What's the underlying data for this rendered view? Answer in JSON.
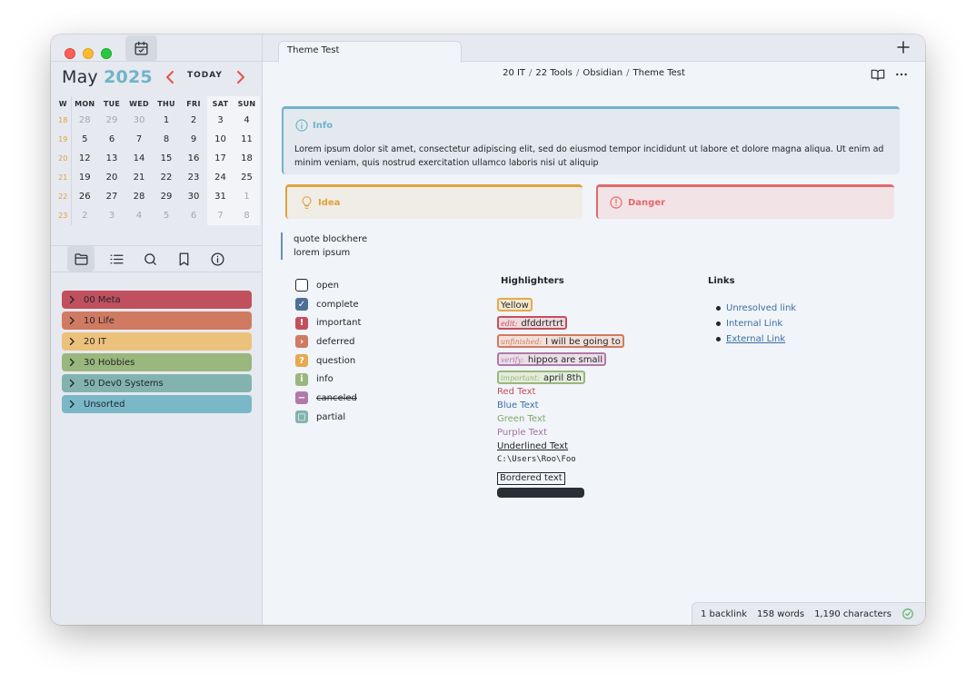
{
  "sidebar": {
    "calendar": {
      "month": "May",
      "year": "2025",
      "today_label": "TODAY",
      "weekday_headers": [
        "W",
        "MON",
        "TUE",
        "WED",
        "THU",
        "FRI",
        "SAT",
        "SUN"
      ],
      "weeks": [
        {
          "week": "18",
          "days": [
            "28",
            "29",
            "30",
            "1",
            "2",
            "3",
            "4"
          ]
        },
        {
          "week": "19",
          "days": [
            "5",
            "6",
            "7",
            "8",
            "9",
            "10",
            "11"
          ]
        },
        {
          "week": "20",
          "days": [
            "12",
            "13",
            "14",
            "15",
            "16",
            "17",
            "18"
          ]
        },
        {
          "week": "21",
          "days": [
            "19",
            "20",
            "21",
            "22",
            "23",
            "24",
            "25"
          ]
        },
        {
          "week": "22",
          "days": [
            "26",
            "27",
            "28",
            "29",
            "30",
            "31",
            "1"
          ]
        },
        {
          "week": "23",
          "days": [
            "2",
            "3",
            "4",
            "5",
            "6",
            "7",
            "8"
          ]
        }
      ],
      "accent_color": "#6fb4c9",
      "nav_color": "#e8524a"
    },
    "nav_tabs": [
      {
        "icon": "folder-icon"
      },
      {
        "icon": "list-icon"
      },
      {
        "icon": "search-icon"
      },
      {
        "icon": "bookmark-icon"
      },
      {
        "icon": "info-icon"
      }
    ],
    "folders": [
      {
        "label": "00 Meta",
        "color": "#c0505e"
      },
      {
        "label": "10 Life",
        "color": "#d07a62"
      },
      {
        "label": "20 IT",
        "color": "#ecc17c"
      },
      {
        "label": "30 Hobbies",
        "color": "#9ab77d"
      },
      {
        "label": "50 Dev0 Systems",
        "color": "#83b3ae"
      },
      {
        "label": "Unsorted",
        "color": "#7ab8c8"
      }
    ]
  },
  "tabbar": {
    "active_tab": "Theme Test",
    "new_tab_icon": "plus-icon"
  },
  "breadcrumb": {
    "parts": [
      "20 IT",
      "22 Tools",
      "Obsidian",
      "Theme Test"
    ],
    "separator": "/"
  },
  "note": {
    "callouts": {
      "info": {
        "title": "Info",
        "body": "Lorem ipsum dolor sit amet, consectetur adipiscing elit, sed do eiusmod tempor incididunt ut labore et dolore magna aliqua. Ut enim ad minim veniam, quis nostrud exercitation ullamco laboris nisi ut aliquip",
        "color": "#6fb4c9"
      },
      "idea": {
        "title": "Idea",
        "color": "#e0a13c"
      },
      "danger": {
        "title": "Danger",
        "color": "#e06a6a"
      }
    },
    "quote": {
      "line1": "quote blockhere",
      "line2": "lorem ipsum"
    },
    "tasks": [
      {
        "label": "open",
        "state": "open",
        "color": "#22262c",
        "glyph": ""
      },
      {
        "label": "complete",
        "state": "complete",
        "color": "#4d6f96",
        "glyph": "✓"
      },
      {
        "label": "important",
        "state": "important",
        "color": "#c0505e",
        "glyph": "!"
      },
      {
        "label": "deferred",
        "state": "deferred",
        "color": "#d07a62",
        "glyph": "›"
      },
      {
        "label": "question",
        "state": "question",
        "color": "#e6a94e",
        "glyph": "?"
      },
      {
        "label": "info",
        "state": "info",
        "color": "#9ab77d",
        "glyph": "i"
      },
      {
        "label": "canceled",
        "state": "canceled",
        "color": "#b07aa8",
        "glyph": "−"
      },
      {
        "label": "partial",
        "state": "partial",
        "color": "#83b3ae",
        "glyph": "▢"
      }
    ],
    "highlighters": {
      "heading": "Highlighters",
      "marks": [
        {
          "label": "",
          "text": "Yellow",
          "color": "#e6a94e",
          "bg": "#f6e9cd"
        },
        {
          "label": "edit:",
          "text": "dfddrtrtrt",
          "color": "#c0505e",
          "bg": "#f1d9dc"
        },
        {
          "label": "unfinished:",
          "text": "I will be going to",
          "color": "#d07a62",
          "bg": "#f3e0d9"
        },
        {
          "label": "verify:",
          "text": "hippos are small",
          "color": "#b07aa8",
          "bg": "#ecdfea"
        },
        {
          "label": "important:",
          "text": "april 8th",
          "color": "#9ab77d",
          "bg": "#e4ecdc"
        }
      ],
      "colored_text": [
        {
          "text": "Red Text",
          "color": "#c0505e"
        },
        {
          "text": "Blue Text",
          "color": "#3b6ea5"
        },
        {
          "text": "Green Text",
          "color": "#7fa86a"
        },
        {
          "text": "Purple Text",
          "color": "#a872a0"
        }
      ],
      "underlined_text": "Underlined Text",
      "code_text": "C:\\Users\\Roo\\Foo",
      "bordered_text": "Bordered text"
    },
    "links": {
      "heading": "Links",
      "items": [
        "Unresolved link",
        "Internal Link",
        "External Link"
      ]
    }
  },
  "status_bar": {
    "backlinks": "1 backlink",
    "words": "158 words",
    "characters": "1,190 characters",
    "sync_icon": "sync-check-icon"
  }
}
